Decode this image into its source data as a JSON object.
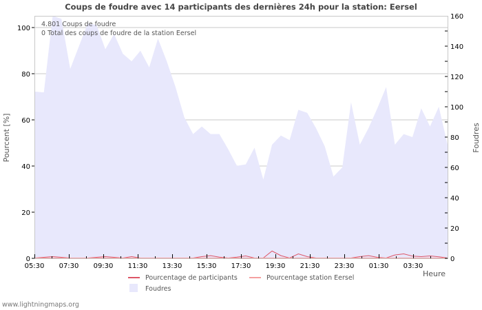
{
  "chart_data": {
    "type": "area",
    "title": "Coups de foudre avec 14 participants des dernières 24h pour la station: Eersel",
    "xlabel": "Heure",
    "ylabel_left": "Pourcent   [%]",
    "ylabel_right": "Foudres",
    "x_tick_labels": [
      "05:30",
      "07:30",
      "09:30",
      "11:30",
      "13:30",
      "15:30",
      "17:30",
      "19:30",
      "21:30",
      "23:30",
      "01:30",
      "03:30"
    ],
    "y_left_ticks": [
      0,
      20,
      40,
      60,
      80,
      100
    ],
    "y_right_ticks": [
      0,
      20,
      40,
      60,
      80,
      100,
      120,
      140,
      160
    ],
    "ylim_left": [
      0,
      105
    ],
    "ylim_right": [
      0,
      160
    ],
    "grid": true,
    "annotations": [
      "4.801  Coups de foudre",
      "0 Total des coups de foudre de la station Eersel"
    ],
    "legend": [
      {
        "label": "Pourcentage de participants",
        "type": "line",
        "color": "#dd5566"
      },
      {
        "label": "Pourcentage station Eersel",
        "type": "line",
        "color": "#f4a0a0"
      },
      {
        "label": "Foudres",
        "type": "area",
        "color": "#e8e8fc"
      }
    ],
    "series": [
      {
        "name": "Foudres",
        "axis": "right",
        "values": [
          110,
          109.5,
          162,
          158,
          125,
          140,
          155,
          154,
          138,
          148,
          135,
          130,
          137,
          126,
          145,
          130,
          113,
          93,
          82,
          87,
          82,
          82,
          72,
          61,
          62,
          73,
          52,
          75,
          81,
          78,
          98,
          96,
          86,
          74,
          54,
          60,
          103,
          75,
          86,
          99,
          113,
          75,
          82,
          80,
          99,
          87,
          100,
          75
        ]
      },
      {
        "name": "Pourcentage de participants",
        "axis": "left",
        "values": [
          0,
          0.3,
          0.6,
          0.3,
          0,
          0,
          0,
          0.3,
          0.6,
          0.3,
          0,
          0.6,
          0,
          0,
          0,
          0,
          0,
          0,
          0,
          0.6,
          1,
          0.4,
          0,
          0.4,
          0.9,
          0,
          0,
          3,
          1,
          0,
          1.8,
          0.6,
          0,
          0,
          0,
          0,
          0,
          0.6,
          1,
          0.3,
          0,
          1.3,
          1.8,
          0.8,
          0.6,
          0.9,
          0.5,
          0
        ]
      },
      {
        "name": "Pourcentage station Eersel",
        "axis": "left",
        "values": [
          0,
          0,
          0,
          0,
          0,
          0,
          0,
          0,
          0,
          0,
          0,
          0,
          0,
          0,
          0,
          0,
          0,
          0,
          0,
          0,
          0,
          0,
          0,
          0,
          0,
          0,
          0,
          0,
          0,
          0,
          0,
          0,
          0,
          0,
          0,
          0,
          0,
          0,
          0,
          0,
          0,
          0,
          0,
          0,
          0,
          0,
          0,
          0
        ]
      }
    ]
  },
  "footer": "www.lightningmaps.org"
}
